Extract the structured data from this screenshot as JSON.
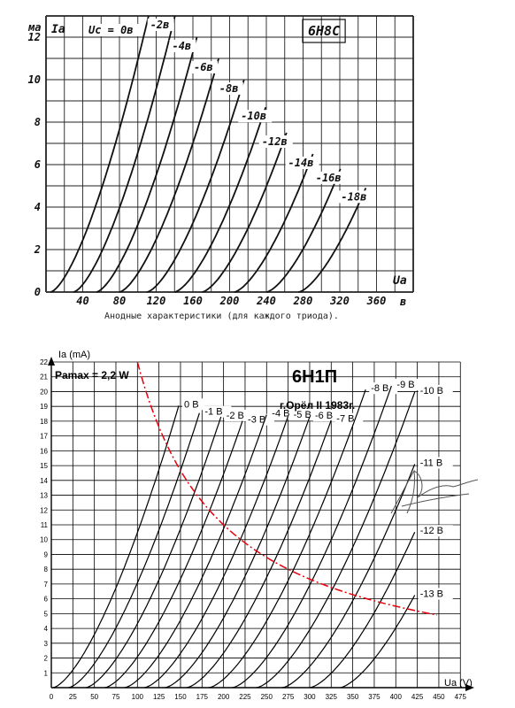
{
  "chart_data": [
    {
      "type": "line",
      "title": "6Н8С",
      "xlabel": "Ua",
      "ylabel": "Ia",
      "x_unit": "в",
      "y_unit": "ма",
      "caption": "Анодные характеристики (для каждого триода).",
      "xlim": [
        0,
        400
      ],
      "ylim": [
        0,
        13
      ],
      "x_ticks": [
        "40",
        "80",
        "120",
        "160",
        "200",
        "240",
        "280",
        "320",
        "360"
      ],
      "y_ticks": [
        "0",
        "2",
        "4",
        "6",
        "8",
        "10",
        "12"
      ],
      "grid": true,
      "curves": [
        {
          "label": "Uc = 0в",
          "u0": 5,
          "k": 0.0118,
          "end_ia": 13
        },
        {
          "label": "-2в",
          "u0": 30,
          "k": 0.0112,
          "end_ia": 13
        },
        {
          "label": "-4в",
          "u0": 55,
          "k": 0.0105,
          "end_ia": 12
        },
        {
          "label": "-6в",
          "u0": 80,
          "k": 0.0098,
          "end_ia": 11
        },
        {
          "label": "-8в",
          "u0": 110,
          "k": 0.0092,
          "end_ia": 10
        },
        {
          "label": "-10в",
          "u0": 140,
          "k": 0.0088,
          "end_ia": 8.7
        },
        {
          "label": "-12в",
          "u0": 170,
          "k": 0.0085,
          "end_ia": 7.5
        },
        {
          "label": "-14в",
          "u0": 205,
          "k": 0.0082,
          "end_ia": 6.5
        },
        {
          "label": "-16в",
          "u0": 240,
          "k": 0.008,
          "end_ia": 5.8
        },
        {
          "label": "-18в",
          "u0": 275,
          "k": 0.0078,
          "end_ia": 4.9
        }
      ]
    },
    {
      "type": "line",
      "title": "6Н1П",
      "subtitle": "г.Орёл II 1983г.",
      "xlabel": "Ua (V)",
      "ylabel": "Ia (mA)",
      "annotation": "Pamax = 2,2 W",
      "annotation_color": "#e8000d",
      "pmax_watts": 2.2,
      "xlim": [
        0,
        485
      ],
      "ylim": [
        0,
        22
      ],
      "x_ticks": [
        "0",
        "25",
        "50",
        "75",
        "100",
        "125",
        "150",
        "175",
        "200",
        "225",
        "250",
        "275",
        "300",
        "325",
        "350",
        "375",
        "400",
        "425",
        "450",
        "475"
      ],
      "y_ticks": [
        "1",
        "2",
        "3",
        "4",
        "5",
        "6",
        "7",
        "8",
        "9",
        "10",
        "11",
        "12",
        "13",
        "14",
        "15",
        "16",
        "17",
        "18",
        "19",
        "20",
        "21",
        "22"
      ],
      "grid": true,
      "curves": [
        {
          "label": "0 В",
          "u0": 2,
          "k": 0.0108,
          "end_ua": 148
        },
        {
          "label": "-1 В",
          "u0": 20,
          "k": 0.0099,
          "end_ua": 172
        },
        {
          "label": "-2 В",
          "u0": 40,
          "k": 0.0093,
          "end_ua": 197
        },
        {
          "label": "-3 В",
          "u0": 62,
          "k": 0.0089,
          "end_ua": 222
        },
        {
          "label": "-4 В",
          "u0": 85,
          "k": 0.0087,
          "end_ua": 250
        },
        {
          "label": "-5 В",
          "u0": 108,
          "k": 0.0085,
          "end_ua": 275
        },
        {
          "label": "-6 В",
          "u0": 132,
          "k": 0.0084,
          "end_ua": 300
        },
        {
          "label": "-7 В",
          "u0": 157,
          "k": 0.0083,
          "end_ua": 325
        },
        {
          "label": "-8 В",
          "u0": 183,
          "k": 0.0082,
          "end_ua": 365
        },
        {
          "label": "-9 В",
          "u0": 210,
          "k": 0.0081,
          "end_ua": 395
        },
        {
          "label": "-10 В",
          "u0": 238,
          "k": 0.008,
          "end_ua": 422
        },
        {
          "label": "-11 В",
          "u0": 268,
          "k": 0.0079,
          "end_ua": 422
        },
        {
          "label": "-12 В",
          "u0": 300,
          "k": 0.0078,
          "end_ua": 422
        },
        {
          "label": "-13 В",
          "u0": 335,
          "k": 0.0077,
          "end_ua": 422
        }
      ]
    }
  ]
}
